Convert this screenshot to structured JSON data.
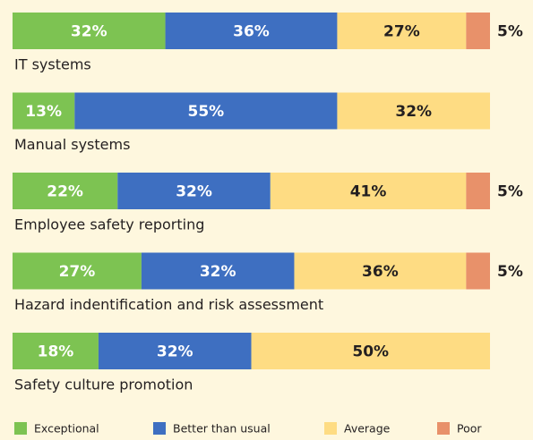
{
  "chart_data": {
    "type": "bar",
    "orientation": "horizontal",
    "stacked": true,
    "categories": [
      "IT systems",
      "Manual systems",
      "Employee safety reporting",
      "Hazard indentification and risk assessment",
      "Safety culture promotion"
    ],
    "series": [
      {
        "name": "Exceptional",
        "color": "#7dc352",
        "values": [
          32,
          13,
          22,
          27,
          18
        ],
        "value_labels": [
          "32%",
          "13%",
          "22%",
          "27%",
          "18%"
        ]
      },
      {
        "name": "Better than usual",
        "color": "#3e6fc1",
        "values": [
          36,
          55,
          32,
          32,
          32
        ],
        "value_labels": [
          "36%",
          "55%",
          "32%",
          "32%",
          "32%"
        ]
      },
      {
        "name": "Average",
        "color": "#fedc83",
        "values": [
          27,
          32,
          41,
          36,
          50
        ],
        "value_labels": [
          "27%",
          "32%",
          "41%",
          "36%",
          "50%"
        ]
      },
      {
        "name": "Poor",
        "color": "#e8916a",
        "values": [
          5,
          null,
          5,
          5,
          null
        ],
        "value_labels": [
          "5%",
          null,
          "5%",
          "5%",
          null
        ]
      }
    ],
    "legend": "bottom"
  }
}
